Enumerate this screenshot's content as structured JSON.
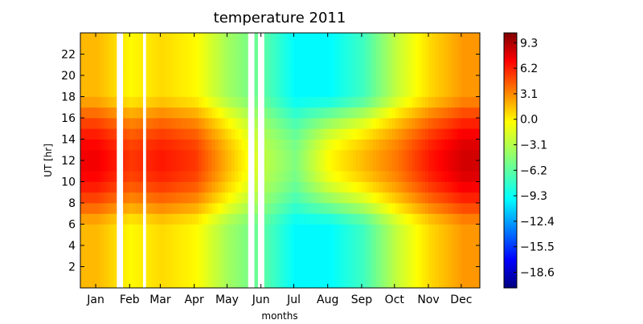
{
  "chart_data": {
    "type": "heatmap",
    "title": "temperature 2011",
    "xlabel": "months",
    "ylabel": "UT [hr]",
    "x_ticks": [
      "Jan",
      "Feb",
      "Mar",
      "Apr",
      "May",
      "Jun",
      "Jul",
      "Aug",
      "Sep",
      "Oct",
      "Nov",
      "Dec"
    ],
    "y_ticks": [
      2,
      4,
      6,
      8,
      10,
      12,
      14,
      16,
      18,
      20,
      22
    ],
    "xlim": [
      1,
      366
    ],
    "ylim": [
      0,
      24
    ],
    "colorbar": {
      "ticks": [
        "9.3",
        "6.2",
        "3.1",
        "0.0",
        "−3.1",
        "−6.2",
        "−9.3",
        "−12.4",
        "−15.5",
        "−18.6"
      ],
      "vmin": -20.5,
      "vmax": 10.5,
      "colormap": "jet"
    },
    "monthly_profile": {
      "months": [
        "Jan",
        "Feb",
        "Mar",
        "Apr",
        "May",
        "Jun",
        "Jul",
        "Aug",
        "Sep",
        "Oct",
        "Nov",
        "Dec"
      ],
      "night_value": [
        1.0,
        -1.0,
        0.0,
        -1.0,
        -4.0,
        -6.0,
        -9.0,
        -9.0,
        -7.0,
        -3.0,
        0.0,
        2.0
      ],
      "noon_value": [
        7.0,
        5.0,
        6.0,
        5.0,
        1.0,
        -3.0,
        -5.0,
        -1.0,
        1.0,
        3.0,
        6.0,
        8.0
      ]
    },
    "grid": false
  }
}
